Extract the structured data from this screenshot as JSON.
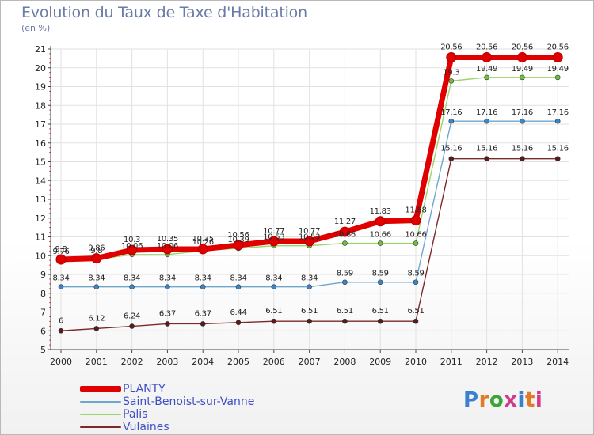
{
  "header": {
    "title": "Evolution du Taux de Taxe d'Habitation",
    "subtitle": "(en %)"
  },
  "colors": {
    "axis": "#444444",
    "grid": "#e2e2e2",
    "ytick_dash": "#d9534f"
  },
  "chart_data": {
    "type": "line",
    "title": "Evolution du Taux de Taxe d'Habitation",
    "ylabel": "(en %)",
    "x": [
      "2000",
      "2001",
      "2002",
      "2003",
      "2004",
      "2005",
      "2006",
      "2007",
      "2008",
      "2009",
      "2010",
      "2011",
      "2012",
      "2013",
      "2014"
    ],
    "ylim": [
      5,
      21
    ],
    "yticks": [
      "5",
      "6",
      "7",
      "8",
      "9",
      "10",
      "11",
      "12",
      "13",
      "14",
      "15",
      "16",
      "17",
      "18",
      "19",
      "20",
      "21"
    ],
    "grid": true,
    "series": [
      {
        "name": "PLANTY",
        "color": "#e00000",
        "marker_color": "#e00000",
        "values": [
          9.8,
          9.86,
          10.3,
          10.35,
          10.35,
          10.56,
          10.77,
          10.77,
          11.27,
          11.83,
          11.88,
          20.56,
          20.56,
          20.56,
          20.56
        ],
        "labels": [
          "9.8",
          "9.86",
          "10.3",
          "10.35",
          "10.35",
          "10.56",
          "10.77",
          "10.77",
          "11.27",
          "11.83",
          "11.88",
          "20.56",
          "20.56",
          "20.56",
          "20.56"
        ]
      },
      {
        "name": "Saint-Benoist-sur-Vanne",
        "color": "#6fa6cf",
        "marker_color": "#3a86c9",
        "values": [
          8.34,
          8.34,
          8.34,
          8.34,
          8.34,
          8.34,
          8.34,
          8.34,
          8.59,
          8.59,
          8.59,
          17.16,
          17.16,
          17.16,
          17.16
        ],
        "labels": [
          "8.34",
          "8.34",
          "8.34",
          "8.34",
          "8.34",
          "8.34",
          "8.34",
          "8.34",
          "8.59",
          "8.59",
          "8.59",
          "17.16",
          "17.16",
          "17.16",
          "17.16"
        ]
      },
      {
        "name": "Palis",
        "color": "#9ad46a",
        "marker_color": "#6cc23a",
        "values": [
          9.76,
          9.8,
          10.06,
          10.06,
          10.26,
          10.39,
          10.53,
          10.53,
          10.66,
          10.66,
          10.66,
          19.3,
          19.49,
          19.49,
          19.49
        ],
        "labels": [
          "9.76",
          "9.8",
          "10.06",
          "10.06",
          "10.26",
          "10.39",
          "10.53",
          "10.53",
          "10.66",
          "10.66",
          "10.66",
          "19.3",
          "19.49",
          "19.49",
          "19.49"
        ]
      },
      {
        "name": "Vulaines",
        "color": "#7a2a2a",
        "marker_color": "#5a1a1a",
        "values": [
          6,
          6.12,
          6.24,
          6.37,
          6.37,
          6.44,
          6.51,
          6.51,
          6.51,
          6.51,
          6.51,
          15.16,
          15.16,
          15.16,
          15.16
        ],
        "labels": [
          "6",
          "6.12",
          "6.24",
          "6.37",
          "6.37",
          "6.44",
          "6.51",
          "6.51",
          "6.51",
          "6.51",
          "6.51",
          "15.16",
          "15.16",
          "15.16",
          "15.16"
        ]
      }
    ],
    "legend_position": "bottom-left"
  },
  "legend": {
    "items": [
      {
        "label": "PLANTY",
        "color": "#e00000"
      },
      {
        "label": "Saint-Benoist-sur-Vanne",
        "color": "#6fa6cf"
      },
      {
        "label": "Palis",
        "color": "#9ad46a"
      },
      {
        "label": "Vulaines",
        "color": "#7a2a2a"
      }
    ]
  },
  "logo": {
    "text": "Proxiti",
    "letter_colors": [
      "#3a7fd0",
      "#e07b2a",
      "#3aa63a",
      "#d43a8a",
      "#3a7fd0",
      "#e07b2a",
      "#d43a8a"
    ]
  }
}
